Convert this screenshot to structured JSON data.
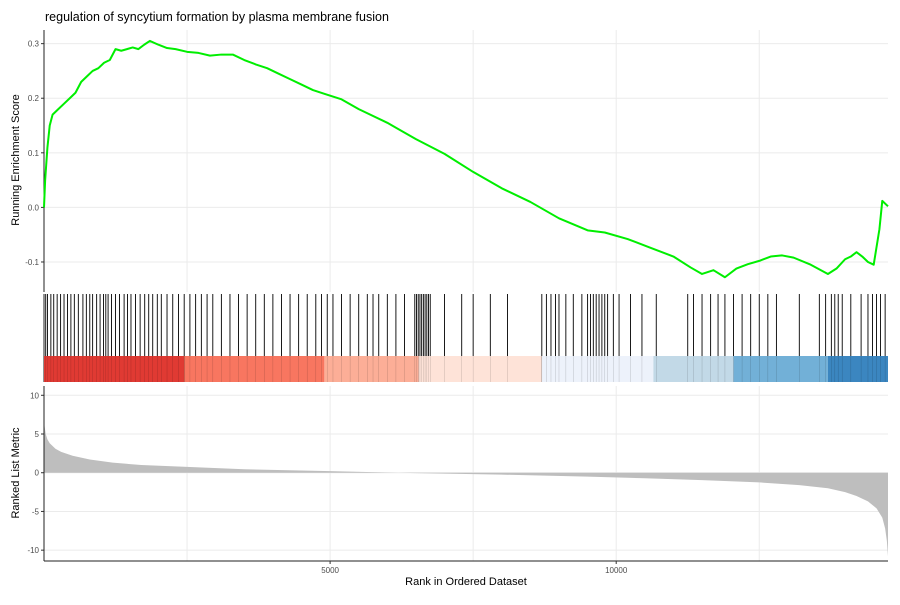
{
  "chart_data": {
    "type": "line",
    "title": "regulation of syncytium formation by plasma membrane fusion",
    "x_axis": {
      "label": "Rank in Ordered Dataset",
      "range": [
        0,
        14750
      ],
      "ticks": [
        5000,
        10000
      ],
      "tick_labels": [
        "5000",
        "10000"
      ],
      "grid": [
        2500,
        5000,
        7500,
        10000,
        12500
      ]
    },
    "panels": [
      {
        "name": "enrichment",
        "ylabel": "Running Enrichment Score",
        "ylim": [
          -0.155,
          0.325
        ],
        "yticks": [
          -0.1,
          0.0,
          0.1,
          0.2,
          0.3
        ],
        "ytick_labels": [
          "-0.1",
          "0.0",
          "0.1",
          "0.2",
          "0.3"
        ],
        "line_color": "#00ee00",
        "series": [
          {
            "x": [
              0,
              20,
              60,
              100,
              150,
              250,
              350,
              450,
              550,
              650,
              750,
              850,
              950,
              1050,
              1150,
              1250,
              1350,
              1450,
              1550,
              1650,
              1750,
              1850,
              2000,
              2150,
              2300,
              2500,
              2700,
              2900,
              3100,
              3300,
              3500,
              3700,
              3900,
              4100,
              4300,
              4500,
              4700,
              4900,
              5200,
              5500,
              6000,
              6500,
              7000,
              7500,
              8000,
              8500,
              9000,
              9500,
              9800,
              10200,
              10600,
              11000,
              11300,
              11500,
              11700,
              11900,
              12100,
              12300,
              12500,
              12700,
              12900,
              13100,
              13400,
              13700,
              13850,
              14000,
              14100,
              14200,
              14300,
              14400,
              14500,
              14600,
              14650,
              14750
            ],
            "y": [
              0.0,
              0.05,
              0.11,
              0.15,
              0.17,
              0.18,
              0.19,
              0.2,
              0.21,
              0.23,
              0.24,
              0.25,
              0.255,
              0.265,
              0.27,
              0.29,
              0.287,
              0.29,
              0.293,
              0.29,
              0.298,
              0.305,
              0.298,
              0.292,
              0.29,
              0.285,
              0.283,
              0.278,
              0.28,
              0.28,
              0.27,
              0.262,
              0.255,
              0.245,
              0.235,
              0.225,
              0.215,
              0.208,
              0.198,
              0.18,
              0.155,
              0.125,
              0.098,
              0.065,
              0.035,
              0.01,
              -0.02,
              -0.042,
              -0.046,
              -0.058,
              -0.074,
              -0.09,
              -0.11,
              -0.122,
              -0.115,
              -0.128,
              -0.112,
              -0.104,
              -0.098,
              -0.09,
              -0.088,
              -0.092,
              -0.105,
              -0.122,
              -0.112,
              -0.095,
              -0.09,
              -0.082,
              -0.09,
              -0.1,
              -0.105,
              -0.04,
              0.012,
              0.002
            ]
          }
        ]
      },
      {
        "name": "hits",
        "gene_hit_ranks": [
          30,
          60,
          120,
          170,
          230,
          290,
          350,
          410,
          470,
          530,
          600,
          680,
          740,
          800,
          850,
          920,
          980,
          1040,
          1080,
          1120,
          1180,
          1250,
          1320,
          1400,
          1460,
          1520,
          1600,
          1680,
          1760,
          1830,
          1900,
          1980,
          2050,
          2150,
          2250,
          2350,
          2450,
          2550,
          2650,
          2750,
          2850,
          2950,
          3100,
          3250,
          3400,
          3550,
          3700,
          3850,
          4000,
          4150,
          4300,
          4450,
          4600,
          4750,
          4850,
          4950,
          5050,
          5200,
          5350,
          5500,
          5650,
          5750,
          5850,
          6000,
          6150,
          6300,
          6480,
          6510,
          6540,
          6570,
          6600,
          6630,
          6660,
          6690,
          6720,
          6750,
          7000,
          7300,
          7500,
          7800,
          8100,
          8700,
          8780,
          8860,
          8940,
          9000,
          9120,
          9250,
          9400,
          9500,
          9550,
          9600,
          9650,
          9700,
          9750,
          9800,
          9850,
          9950,
          10050,
          10250,
          10450,
          10700,
          11250,
          11350,
          11500,
          11650,
          11780,
          11900,
          12050,
          12200,
          12350,
          12500,
          12650,
          12800,
          13200,
          13550,
          13660,
          13760,
          13820,
          13880,
          13950,
          14100,
          14280,
          14400,
          14480,
          14550,
          14620,
          14700
        ]
      },
      {
        "name": "metric",
        "ylabel": "Ranked List Metric",
        "ylim": [
          -11.4,
          11.2
        ],
        "yticks": [
          -10,
          -5,
          0,
          5,
          10
        ],
        "ytick_labels": [
          "-10",
          "-5",
          "0",
          "5",
          "10"
        ],
        "fill_color": "#bebebe",
        "series": [
          {
            "x": [
              0,
              10,
              30,
              60,
              100,
              200,
              300,
              500,
              800,
              1200,
              1700,
              2500,
              3500,
              5000,
              6500,
              8000,
              9500,
              10500,
              11500,
              12500,
              13200,
              13700,
              14000,
              14200,
              14400,
              14550,
              14650,
              14700,
              14730,
              14750
            ],
            "y": [
              7.2,
              6.0,
              5.0,
              4.3,
              3.8,
              3.1,
              2.7,
              2.2,
              1.7,
              1.3,
              1.0,
              0.75,
              0.45,
              0.2,
              -0.05,
              -0.25,
              -0.5,
              -0.72,
              -0.95,
              -1.25,
              -1.6,
              -2.0,
              -2.5,
              -3.0,
              -3.7,
              -4.6,
              -5.8,
              -7.2,
              -8.8,
              -10.8
            ]
          }
        ]
      }
    ],
    "ranking_color_bands": [
      {
        "start": 0,
        "end": 2450,
        "color": "#e03a33"
      },
      {
        "start": 2450,
        "end": 4900,
        "color": "#f87660"
      },
      {
        "start": 4900,
        "end": 6550,
        "color": "#fcae97"
      },
      {
        "start": 6550,
        "end": 8700,
        "color": "#fee3d8"
      },
      {
        "start": 8700,
        "end": 10650,
        "color": "#edf2fb"
      },
      {
        "start": 10650,
        "end": 12050,
        "color": "#c2d9e7"
      },
      {
        "start": 12050,
        "end": 13700,
        "color": "#72b0d7"
      },
      {
        "start": 13700,
        "end": 14750,
        "color": "#3b86c0"
      }
    ]
  }
}
